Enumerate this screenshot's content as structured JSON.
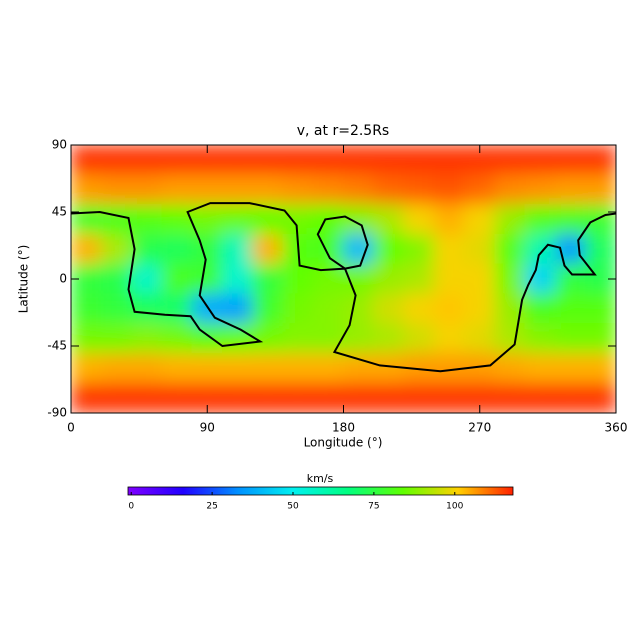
{
  "chart_data": {
    "type": "heatmap",
    "title": "v, at r=2.5Rs",
    "x_label": "Longitude (°)",
    "y_label": "Latitude (°)",
    "x": [
      10,
      30,
      50,
      70,
      90,
      110,
      130,
      150,
      170,
      190,
      210,
      230,
      250,
      270,
      290,
      310,
      330,
      350
    ],
    "y": [
      80,
      60,
      40,
      20,
      0,
      -20,
      -40,
      -60,
      -80
    ],
    "values": [
      [
        116,
        116,
        116,
        116,
        116,
        116,
        116,
        116,
        116,
        116,
        116,
        116,
        116,
        116,
        116,
        116,
        116,
        116
      ],
      [
        106,
        107,
        107,
        106,
        106,
        106,
        106,
        107,
        108,
        109,
        111,
        112,
        113,
        111,
        108,
        107,
        106,
        106
      ],
      [
        78,
        80,
        82,
        84,
        86,
        85,
        84,
        86,
        84,
        88,
        92,
        100,
        104,
        100,
        90,
        82,
        80,
        78
      ],
      [
        104,
        92,
        74,
        72,
        76,
        58,
        104,
        82,
        80,
        40,
        84,
        88,
        100,
        98,
        82,
        60,
        35,
        72
      ],
      [
        76,
        74,
        56,
        80,
        78,
        55,
        76,
        84,
        86,
        86,
        90,
        92,
        100,
        100,
        86,
        45,
        76,
        74
      ],
      [
        78,
        76,
        72,
        70,
        38,
        36,
        78,
        86,
        88,
        90,
        96,
        100,
        102,
        100,
        90,
        80,
        82,
        82
      ],
      [
        86,
        86,
        88,
        86,
        82,
        84,
        86,
        88,
        88,
        90,
        92,
        96,
        100,
        98,
        92,
        88,
        86,
        86
      ],
      [
        104,
        105,
        105,
        104,
        104,
        104,
        104,
        104,
        104,
        105,
        105,
        106,
        106,
        106,
        105,
        104,
        104,
        104
      ],
      [
        116,
        116,
        116,
        116,
        116,
        116,
        116,
        116,
        116,
        116,
        116,
        116,
        116,
        116,
        116,
        116,
        116,
        116
      ]
    ],
    "xlim": [
      0,
      360
    ],
    "ylim": [
      -90,
      90
    ],
    "xticks": [
      0,
      90,
      180,
      270,
      360
    ],
    "yticks": [
      90,
      45,
      0,
      -45,
      -90
    ],
    "colormap": [
      "#8000ff",
      "#2000ff",
      "#0090ff",
      "#00f0f0",
      "#00ff80",
      "#60ff00",
      "#ffd000",
      "#ff2000"
    ],
    "colorbar": {
      "label": "km/s",
      "lim": [
        -1,
        118
      ],
      "ticks": [
        0,
        25,
        50,
        75,
        100
      ]
    },
    "contour": {
      "color": "#000000",
      "lon": [
        0,
        19,
        38,
        42,
        38,
        42,
        62,
        79,
        85,
        100,
        125,
        112,
        95,
        85,
        89,
        85,
        77,
        92,
        118,
        141,
        149,
        151,
        165,
        181,
        191,
        196,
        192,
        181,
        168,
        163,
        171,
        181,
        188,
        184,
        174,
        204,
        244,
        277,
        293,
        298,
        302,
        307,
        309,
        315,
        323,
        326,
        331,
        346,
        336,
        335,
        343,
        353,
        360
      ],
      "lat": [
        44,
        45,
        41,
        20,
        -7,
        -22,
        -24,
        -25,
        -34,
        -45,
        -42,
        -34,
        -26,
        -11,
        13,
        26,
        45,
        51,
        51,
        46,
        36,
        9,
        6,
        7,
        9,
        23,
        36,
        42,
        40,
        30,
        14,
        7,
        -11,
        -31,
        -49,
        -58,
        -62,
        -58,
        -44,
        -14,
        -4,
        6,
        16,
        23,
        21,
        9,
        3,
        3,
        16,
        26,
        38,
        43,
        44
      ]
    }
  }
}
